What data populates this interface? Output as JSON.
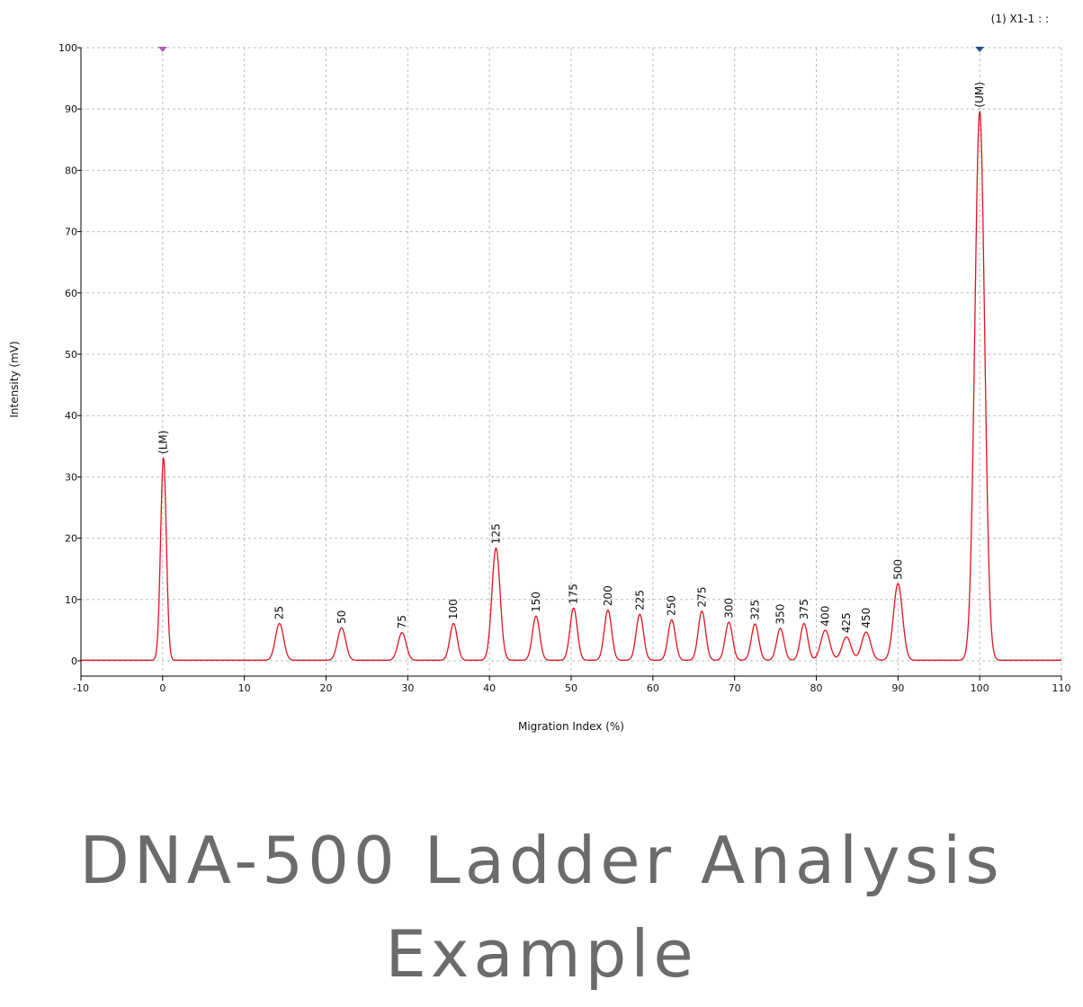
{
  "trace_id": "(1) X1-1 : :",
  "caption": "DNA-500 Ladder Analysis Example",
  "colors": {
    "trace": "#e0141e",
    "grid": "#bdbdbd",
    "marker_lower": "#b05ab0",
    "marker_upper": "#1f4e8c"
  },
  "chart_data": {
    "type": "line",
    "title": "",
    "xlabel": "Migration Index (%)",
    "ylabel": "Intensity (mV)",
    "xlim": [
      -10,
      110
    ],
    "ylim": [
      0,
      100
    ],
    "x_ticks": [
      -10,
      0,
      10,
      20,
      30,
      40,
      50,
      60,
      70,
      80,
      90,
      100,
      110
    ],
    "y_ticks": [
      0,
      10,
      20,
      30,
      40,
      50,
      60,
      70,
      80,
      90,
      100
    ],
    "grid": true,
    "baseline": 0.1,
    "markers": [
      {
        "name": "lower-marker",
        "x": 0
      },
      {
        "name": "upper-marker",
        "x": 100
      }
    ],
    "peaks": [
      {
        "label": "(LM)",
        "x": 0.1,
        "y": 33,
        "width": 0.35
      },
      {
        "label": "25",
        "x": 14.3,
        "y": 6.0,
        "width": 0.5
      },
      {
        "label": "50",
        "x": 21.9,
        "y": 5.3,
        "width": 0.5
      },
      {
        "label": "75",
        "x": 29.3,
        "y": 4.5,
        "width": 0.5
      },
      {
        "label": "100",
        "x": 35.6,
        "y": 6.0,
        "width": 0.45
      },
      {
        "label": "125",
        "x": 40.8,
        "y": 18.3,
        "width": 0.5
      },
      {
        "label": "150",
        "x": 45.7,
        "y": 7.2,
        "width": 0.45
      },
      {
        "label": "175",
        "x": 50.3,
        "y": 8.5,
        "width": 0.45
      },
      {
        "label": "200",
        "x": 54.5,
        "y": 8.2,
        "width": 0.45
      },
      {
        "label": "225",
        "x": 58.4,
        "y": 7.5,
        "width": 0.45
      },
      {
        "label": "250",
        "x": 62.3,
        "y": 6.6,
        "width": 0.45
      },
      {
        "label": "275",
        "x": 66.0,
        "y": 8.0,
        "width": 0.45
      },
      {
        "label": "300",
        "x": 69.3,
        "y": 6.2,
        "width": 0.45
      },
      {
        "label": "325",
        "x": 72.5,
        "y": 5.9,
        "width": 0.45
      },
      {
        "label": "350",
        "x": 75.6,
        "y": 5.2,
        "width": 0.45
      },
      {
        "label": "375",
        "x": 78.5,
        "y": 6.0,
        "width": 0.45
      },
      {
        "label": "400",
        "x": 81.1,
        "y": 4.9,
        "width": 0.55
      },
      {
        "label": "425",
        "x": 83.7,
        "y": 3.8,
        "width": 0.55
      },
      {
        "label": "450",
        "x": 86.1,
        "y": 4.6,
        "width": 0.55
      },
      {
        "label": "500",
        "x": 90.0,
        "y": 12.5,
        "width": 0.55
      },
      {
        "label": "(UM)",
        "x": 100.0,
        "y": 89.5,
        "width": 0.6
      }
    ]
  }
}
